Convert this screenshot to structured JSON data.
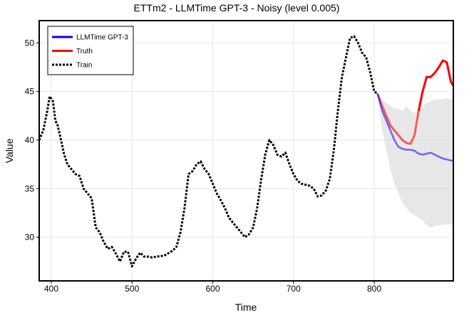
{
  "chart_data": {
    "type": "line",
    "title": "ETTm2 - LLMTime GPT-3 - Noisy (level 0.005)",
    "xlabel": "Time",
    "ylabel": "Value",
    "xlim": [
      385,
      898
    ],
    "ylim": [
      25.5,
      52.3
    ],
    "xticks": [
      400,
      500,
      600,
      700,
      800
    ],
    "yticks": [
      30,
      35,
      40,
      45,
      50
    ],
    "grid": true,
    "legend_position": "top-left",
    "legend": [
      {
        "label": "LLMTime GPT-3",
        "color": "#0000ff",
        "style": "solid"
      },
      {
        "label": "Truth",
        "color": "#ff0000",
        "style": "solid"
      },
      {
        "label": "Train",
        "color": "#000000",
        "style": "dotted"
      }
    ],
    "series": [
      {
        "name": "Train",
        "color": "#000000",
        "style": "dotted",
        "x": [
          385,
          390,
          395,
          398,
          402,
          405,
          408,
          412,
          416,
          420,
          425,
          430,
          435,
          440,
          445,
          450,
          455,
          460,
          465,
          470,
          475,
          480,
          485,
          490,
          495,
          500,
          505,
          510,
          515,
          520,
          525,
          530,
          540,
          550,
          555,
          560,
          565,
          570,
          575,
          580,
          585,
          590,
          595,
          600,
          605,
          610,
          615,
          620,
          625,
          630,
          635,
          640,
          645,
          650,
          655,
          660,
          665,
          670,
          675,
          680,
          685,
          690,
          695,
          700,
          705,
          710,
          715,
          720,
          725,
          730,
          735,
          740,
          745,
          750,
          755,
          760,
          765,
          770,
          775,
          780,
          785,
          790,
          795,
          800,
          804
        ],
        "y": [
          40.0,
          41.0,
          43.0,
          44.5,
          44.0,
          42.0,
          41.5,
          40.0,
          38.5,
          37.5,
          37.0,
          36.5,
          36.3,
          35.0,
          34.5,
          34.0,
          31.0,
          30.5,
          29.5,
          28.8,
          29.0,
          28.3,
          27.5,
          28.5,
          28.5,
          27.0,
          27.8,
          28.4,
          28.0,
          28.0,
          27.9,
          28.0,
          28.1,
          28.6,
          29.0,
          30.5,
          33.0,
          36.5,
          36.8,
          37.5,
          37.8,
          37.0,
          36.5,
          35.5,
          34.5,
          33.8,
          33.0,
          32.0,
          31.5,
          31.0,
          30.5,
          30.0,
          30.3,
          31.0,
          33.0,
          36.0,
          38.5,
          40.0,
          39.5,
          38.5,
          38.3,
          38.7,
          37.5,
          36.5,
          35.8,
          35.5,
          35.4,
          35.3,
          35.0,
          34.2,
          34.3,
          34.8,
          36.0,
          39.0,
          43.0,
          46.5,
          48.5,
          50.5,
          50.7,
          50.0,
          49.0,
          48.5,
          47.0,
          45.0,
          44.8
        ]
      },
      {
        "name": "Truth",
        "color": "#ff0000",
        "style": "solid",
        "x": [
          804,
          810,
          815,
          820,
          825,
          830,
          835,
          840,
          845,
          850,
          855,
          860,
          865,
          870,
          875,
          880,
          885,
          890,
          895,
          898
        ],
        "y": [
          44.8,
          43.5,
          42.5,
          41.5,
          41.0,
          40.5,
          40.0,
          39.7,
          39.6,
          40.5,
          43.0,
          45.0,
          46.5,
          46.5,
          46.9,
          47.5,
          48.2,
          48.0,
          46.0,
          45.6
        ]
      },
      {
        "name": "LLMTime GPT-3",
        "color": "#0000ff",
        "style": "solid",
        "x": [
          804,
          810,
          815,
          820,
          825,
          830,
          835,
          840,
          845,
          850,
          855,
          860,
          865,
          870,
          875,
          880,
          885,
          890,
          895,
          898
        ],
        "y": [
          44.8,
          43.0,
          42.0,
          41.0,
          40.0,
          39.3,
          39.1,
          39.0,
          39.0,
          38.9,
          38.6,
          38.5,
          38.6,
          38.7,
          38.5,
          38.3,
          38.1,
          38.0,
          37.9,
          37.9
        ]
      }
    ],
    "interval": {
      "name": "LLMTime GPT-3 interval",
      "color": "#d3d3d3",
      "x": [
        804,
        810,
        815,
        820,
        825,
        830,
        835,
        840,
        845,
        850,
        855,
        860,
        865,
        870,
        875,
        880,
        885,
        890,
        895,
        898
      ],
      "upper": [
        44.8,
        44.2,
        43.8,
        43.5,
        43.3,
        43.2,
        43.0,
        43.5,
        43.0,
        42.8,
        43.2,
        43.5,
        43.8,
        44.0,
        44.2,
        44.2,
        44.2,
        44.3,
        44.2,
        44.2
      ],
      "lower": [
        44.8,
        41.0,
        39.0,
        37.0,
        35.5,
        34.5,
        33.5,
        33.0,
        32.5,
        32.3,
        32.0,
        31.8,
        31.2,
        31.0,
        31.2,
        31.2,
        31.3,
        31.3,
        31.3,
        31.3
      ]
    }
  }
}
